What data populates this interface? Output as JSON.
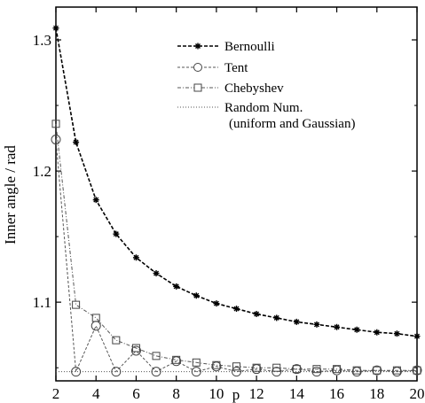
{
  "chart_data": {
    "type": "line",
    "title": "",
    "xlabel": "p",
    "ylabel": "Inner angle / rad",
    "xlim": [
      2,
      20
    ],
    "ylim": [
      1.04,
      1.325
    ],
    "xticks": [
      2,
      4,
      6,
      8,
      10,
      12,
      14,
      16,
      18,
      20
    ],
    "xtick_labels": [
      "2",
      "4",
      "6",
      "8",
      "10",
      "12",
      "14",
      "16",
      "18",
      "20"
    ],
    "yticks": [
      1.1,
      1.2,
      1.3
    ],
    "ytick_labels": [
      "1.1",
      "1.2",
      "1.3"
    ],
    "grid": false,
    "legend_position": "top-right",
    "series": [
      {
        "name": "Bernoulli",
        "marker": "asterisk",
        "line_style": "dashed",
        "x": [
          2,
          3,
          4,
          5,
          6,
          7,
          8,
          9,
          10,
          11,
          12,
          13,
          14,
          15,
          16,
          17,
          18,
          19,
          20
        ],
        "y": [
          1.309,
          1.222,
          1.178,
          1.152,
          1.134,
          1.122,
          1.112,
          1.105,
          1.099,
          1.095,
          1.091,
          1.088,
          1.085,
          1.083,
          1.081,
          1.079,
          1.077,
          1.076,
          1.074
        ]
      },
      {
        "name": "Tent",
        "marker": "circle",
        "line_style": "dashed-light",
        "x": [
          2,
          3,
          4,
          5,
          6,
          7,
          8,
          9,
          10,
          11,
          12,
          13,
          14,
          15,
          16,
          17,
          18,
          19,
          20
        ],
        "y": [
          1.224,
          1.047,
          1.082,
          1.047,
          1.063,
          1.047,
          1.055,
          1.047,
          1.051,
          1.047,
          1.049,
          1.047,
          1.049,
          1.047,
          1.048,
          1.047,
          1.048,
          1.047,
          1.048
        ]
      },
      {
        "name": "Chebyshev",
        "marker": "square",
        "line_style": "dash-dot",
        "x": [
          2,
          3,
          4,
          5,
          6,
          7,
          8,
          9,
          10,
          11,
          12,
          13,
          14,
          15,
          16,
          17,
          18,
          19,
          20
        ],
        "y": [
          1.236,
          1.098,
          1.088,
          1.071,
          1.065,
          1.059,
          1.056,
          1.054,
          1.052,
          1.051,
          1.05,
          1.05,
          1.049,
          1.049,
          1.049,
          1.048,
          1.048,
          1.048,
          1.048
        ]
      },
      {
        "name": "Random Num.",
        "name_line2": "(uniform and Gaussian)",
        "marker": "none",
        "line_style": "dotted",
        "x": [
          2,
          3,
          4,
          5,
          6,
          7,
          8,
          9,
          10,
          11,
          12,
          13,
          14,
          15,
          16,
          17,
          18,
          19,
          20
        ],
        "y": [
          1.047,
          1.047,
          1.047,
          1.047,
          1.047,
          1.047,
          1.047,
          1.047,
          1.047,
          1.047,
          1.047,
          1.047,
          1.047,
          1.047,
          1.047,
          1.047,
          1.047,
          1.047,
          1.047
        ]
      }
    ]
  }
}
